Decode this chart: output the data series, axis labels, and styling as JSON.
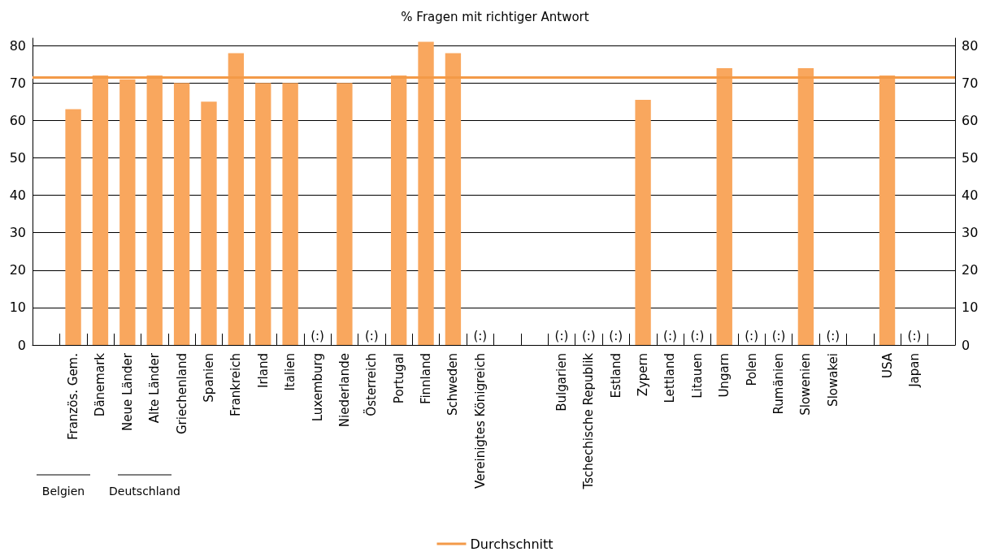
{
  "chart_data": {
    "type": "bar",
    "title": "% Fragen mit richtiger Antwort",
    "categories": [
      null,
      "Französ. Gem.",
      "Dänemark",
      "Neue Länder",
      "Alte Länder",
      "Griechenland",
      "Spanien",
      "Frankreich",
      "Irland",
      "Italien",
      "Luxemburg",
      "Niederlande",
      "Österreich",
      "Portugal",
      "Finnland",
      "Schweden",
      "Vereinigtes Königreich",
      null,
      null,
      "Bulgarien",
      "Tschechische Republik",
      "Estland",
      "Zypern",
      "Lettland",
      "Litauen",
      "Ungarn",
      "Polen",
      "Rumänien",
      "Slowenien",
      "Slowakei",
      null,
      "USA",
      "Japan",
      null
    ],
    "values": [
      null,
      63,
      72,
      71,
      72,
      70,
      65,
      78,
      70,
      70,
      null,
      70,
      null,
      72,
      81,
      78,
      null,
      null,
      null,
      null,
      null,
      null,
      65.5,
      null,
      null,
      74,
      null,
      null,
      74,
      null,
      null,
      72,
      null,
      null
    ],
    "color": "#f9a75e",
    "ylim": [
      0,
      82
    ],
    "yticks": [
      0,
      10,
      20,
      30,
      40,
      50,
      60,
      70,
      80
    ],
    "y2lim": [
      0,
      82
    ],
    "y2ticks": [
      0,
      10,
      20,
      30,
      40,
      50,
      60,
      70,
      80
    ],
    "grid": "y",
    "legend": "bottom",
    "ref_lines": [
      {
        "axis": "y",
        "value": 71.5,
        "label": "Durchschnitt",
        "color": "#f39a48"
      }
    ],
    "annotations": [
      "(:)",
      "(:)",
      "(:)",
      "(:)",
      "(:)",
      "(:)",
      "(:)",
      "(:)",
      "(:)",
      "(:)",
      "(:)",
      "(:)",
      "Belgien",
      "Deutschland"
    ]
  }
}
